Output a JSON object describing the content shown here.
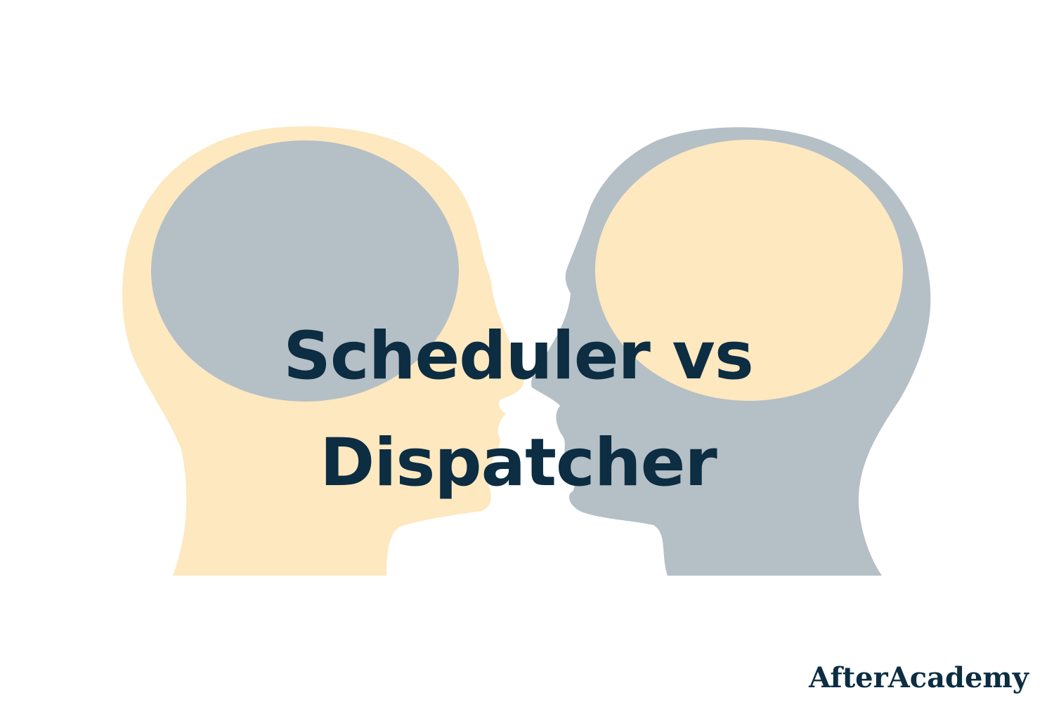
{
  "title": {
    "line1": "Scheduler vs",
    "line2": "Dispatcher"
  },
  "brand": {
    "name": "AfterAcademy"
  },
  "colors": {
    "background": "#ffffff",
    "cream": "#fde8bf",
    "slate": "#b5bfc6",
    "text": "#0c2d42"
  },
  "illustration": {
    "left_head": "cream-head-silhouette-facing-right",
    "right_head": "slate-head-silhouette-facing-left"
  }
}
